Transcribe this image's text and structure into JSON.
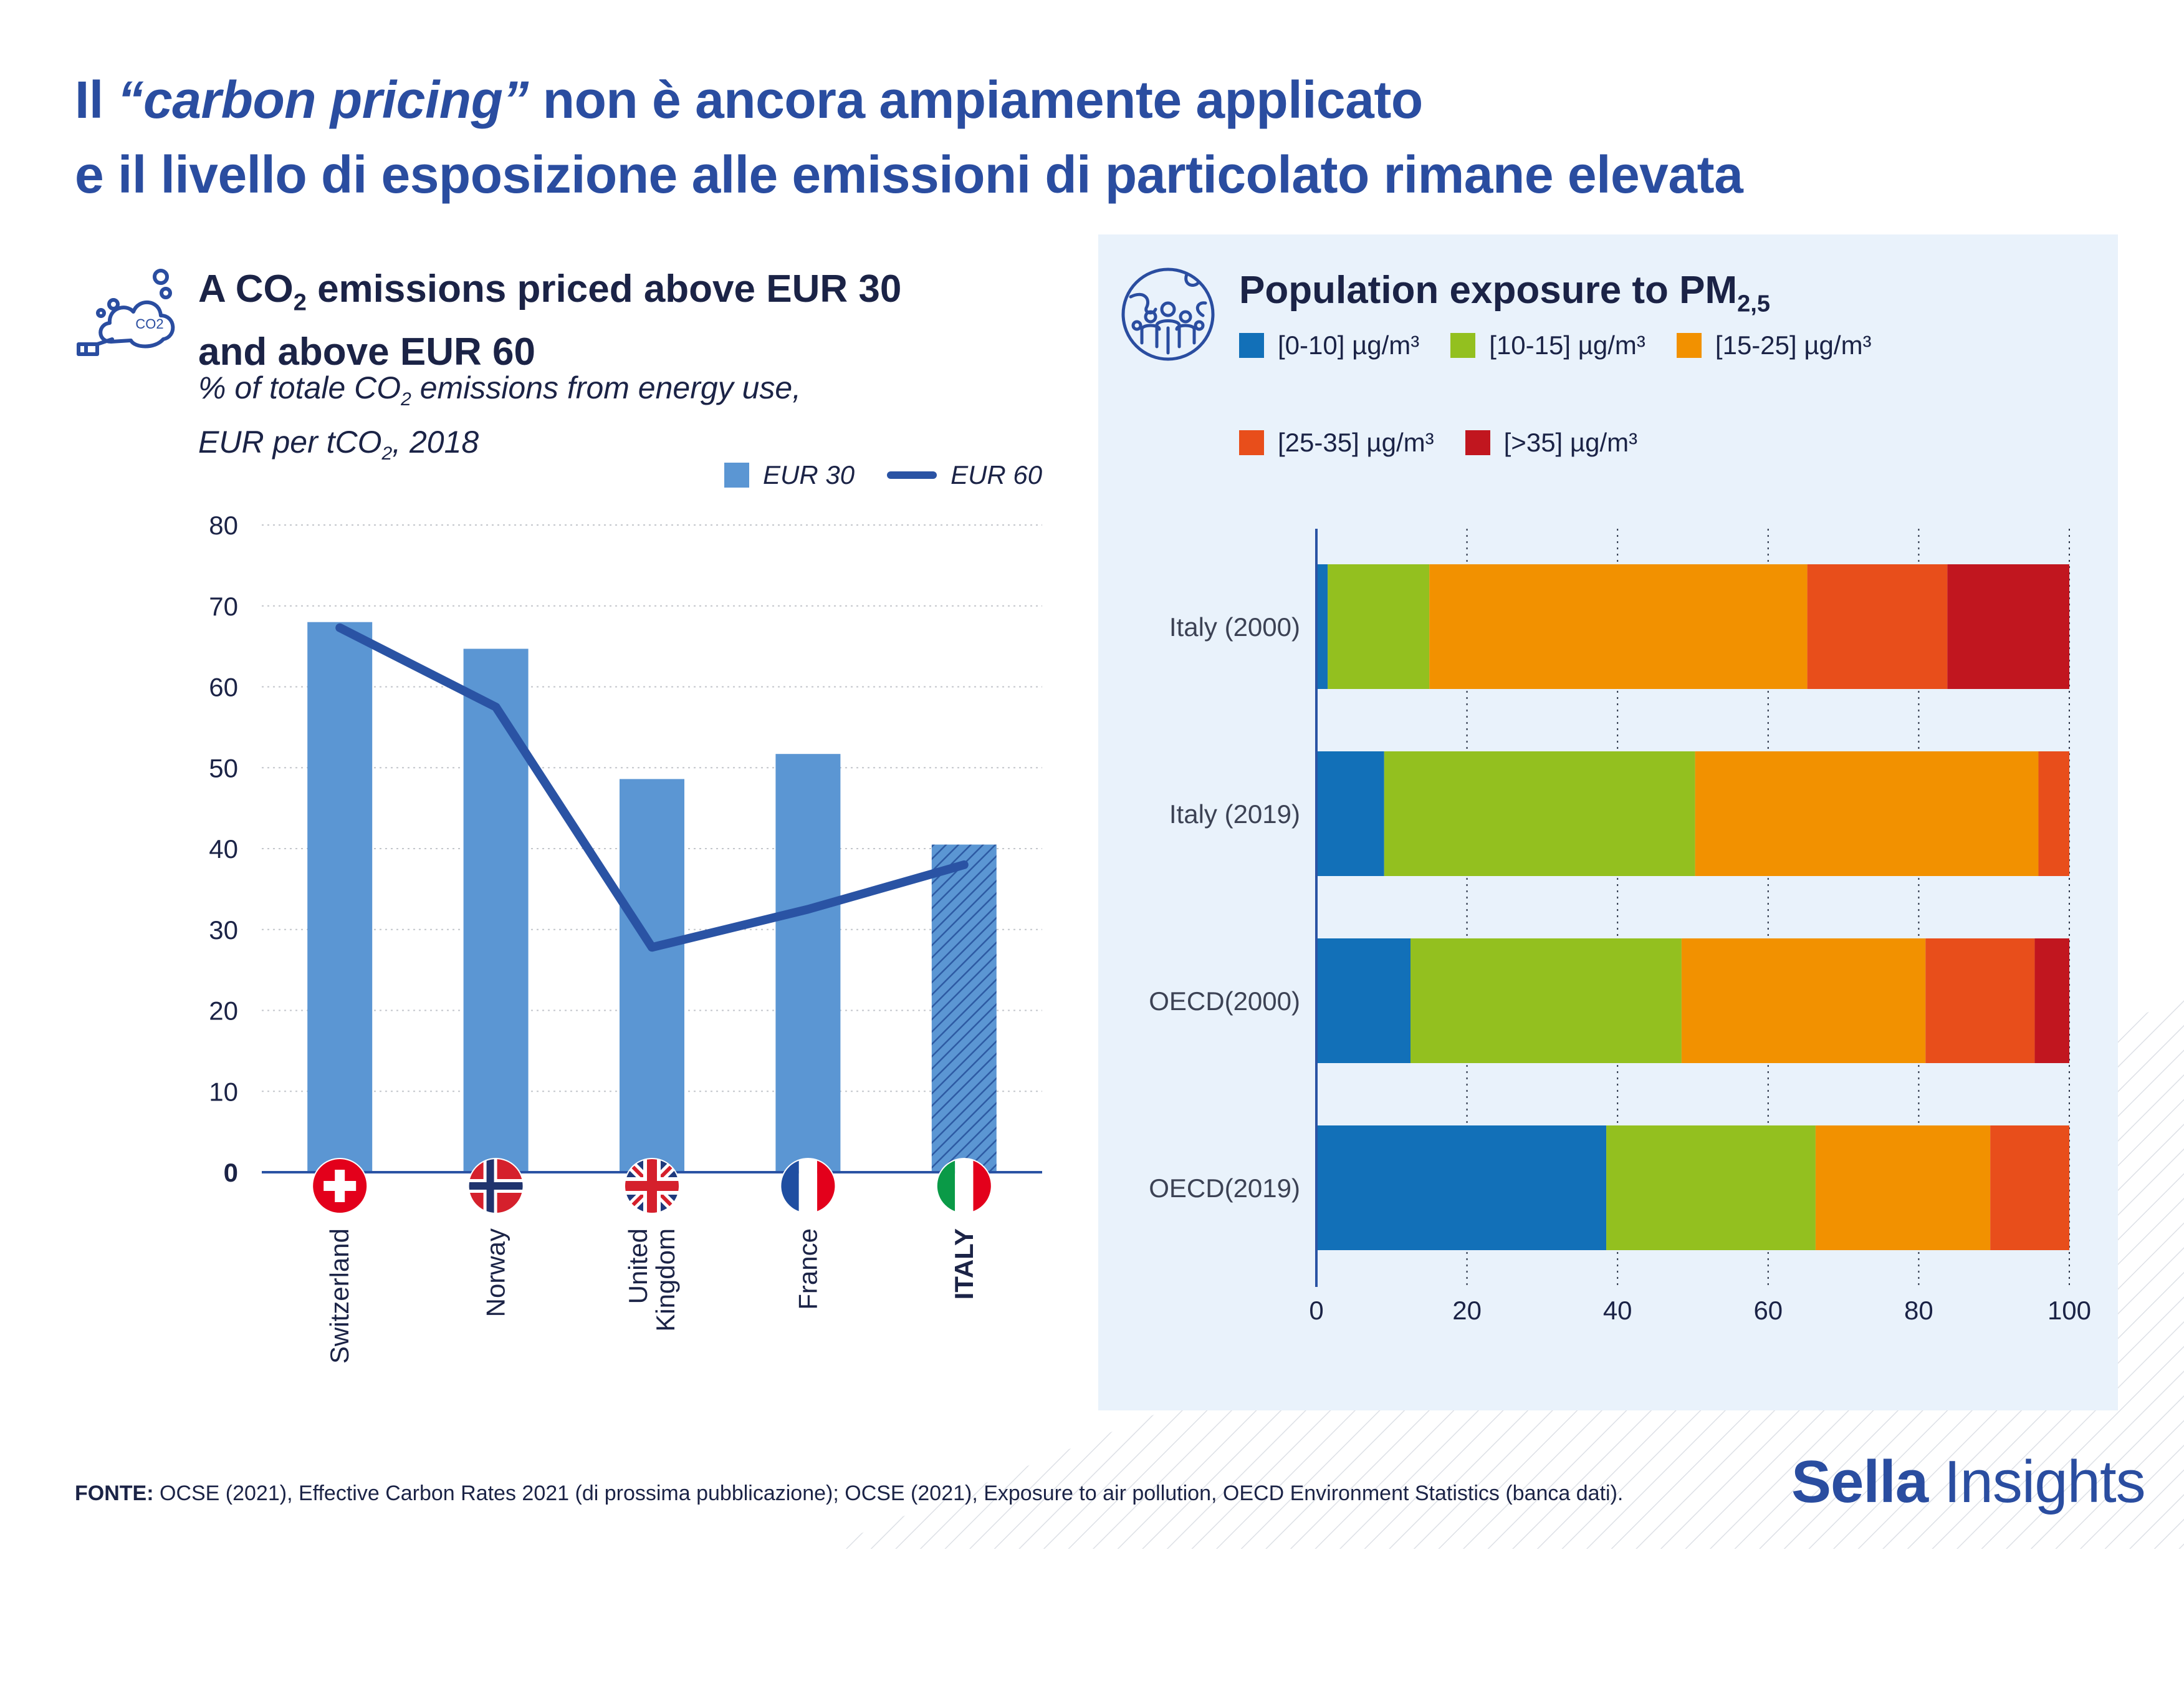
{
  "header": {
    "line1_pre": "Il ",
    "line1_em": "“carbon pricing”",
    "line1_post": " non è ancora ampiamente applicato",
    "line2": "e il livello di esposizione alle emissioni di particolato rimane elevata"
  },
  "left_chart": {
    "title_l1_pre": "A CO",
    "title_l1_sub": "2",
    "title_l1_post": " emissions priced above EUR 30",
    "title_l2": "and above EUR 60",
    "subtitle_l1_pre": "% of totale CO",
    "subtitle_l1_sub": "2",
    "subtitle_l1_post": " emissions from energy use,",
    "subtitle_l2_pre": "EUR per tCO",
    "subtitle_l2_sub": "2",
    "subtitle_l2_post": ", 2018",
    "icon_text": "CO2",
    "legend": {
      "bar": "EUR 30",
      "line": "EUR 60"
    }
  },
  "right_chart": {
    "title": "Population exposure to PM",
    "title_sub": "2,5",
    "unit": "µg/m",
    "unit_sup": "3"
  },
  "source": {
    "label": "FONTE:",
    "text": " OCSE (2021), Effective Carbon Rates 2021 (di prossima pubblicazione); OCSE (2021), Exposure to air pollution, OECD Environment Statistics (banca dati)."
  },
  "brand": {
    "bold": "Sella",
    "regular": " Insights"
  },
  "chart_data": [
    {
      "type": "bar",
      "categories": [
        "Switzerland",
        "Norway",
        "United Kingdom",
        "France",
        "ITALY"
      ],
      "series": [
        {
          "name": "EUR 30",
          "type": "bar",
          "values": [
            68,
            64.7,
            48.6,
            51.7,
            40.5
          ]
        },
        {
          "name": "EUR 60",
          "type": "line",
          "values": [
            67.3,
            57.5,
            27.8,
            32.5,
            38
          ]
        }
      ],
      "ylim": [
        0,
        80
      ],
      "yticks": [
        0,
        10,
        20,
        30,
        40,
        50,
        60,
        70,
        80
      ],
      "highlight_category": "ITALY",
      "highlight_style": "hatched",
      "grid": "horizontal dotted",
      "legend_position": "top-right",
      "colors": {
        "bar": "#5b96d3",
        "line": "#2a53a4"
      }
    },
    {
      "type": "bar",
      "orientation": "horizontal",
      "stacked": true,
      "categories": [
        "Italy (2000)",
        "Italy (2019)",
        "OECD(2000)",
        "OECD(2019)"
      ],
      "series": [
        {
          "name": "[0-10] µg/m³",
          "values": [
            1.5,
            9,
            12.5,
            38.5
          ]
        },
        {
          "name": "[10-15] µg/m³",
          "values": [
            13.5,
            41.3,
            36,
            27.8
          ]
        },
        {
          "name": "[15-25] µg/m³",
          "values": [
            50.2,
            45.6,
            32.4,
            23.2
          ]
        },
        {
          "name": "[25-35] µg/m³",
          "values": [
            18.6,
            4.1,
            14.5,
            10.5
          ]
        },
        {
          "name": "[>35] µg/m³",
          "values": [
            16.2,
            0,
            4.6,
            0
          ]
        }
      ],
      "xlim": [
        0,
        100
      ],
      "xticks": [
        0,
        20,
        40,
        60,
        80,
        100
      ],
      "grid": "vertical dotted",
      "legend_position": "top",
      "colors": [
        "#1270b8",
        "#93c01f",
        "#f29100",
        "#e84e1b",
        "#c1161f"
      ]
    }
  ]
}
